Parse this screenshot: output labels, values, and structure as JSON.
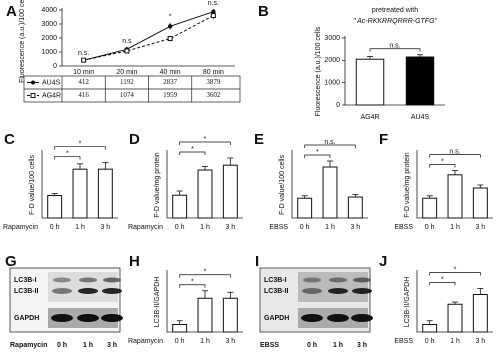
{
  "chart_data": [
    {
      "type": "line",
      "letter": "A",
      "ylabel": "Fluorescence (a.u.)/100 cells",
      "categories": [
        "10 min",
        "20 min",
        "40 min",
        "80 min"
      ],
      "series": [
        {
          "name": "AU4S",
          "color": "#111111",
          "linestyle": "solid",
          "values": [
            412,
            1192,
            2837,
            3879
          ],
          "errors": [
            60,
            150,
            250,
            200
          ]
        },
        {
          "name": "AG4R",
          "color": "#111111",
          "linestyle": "dashed",
          "values": [
            416,
            1074,
            1959,
            3602
          ],
          "errors": [
            60,
            120,
            200,
            250
          ]
        }
      ],
      "annotations": [
        "n.s.",
        "n.s",
        "*",
        "n.s."
      ],
      "ylim": [
        0,
        4000
      ],
      "yticks": [
        0,
        1000,
        2000,
        3000,
        4000
      ]
    },
    {
      "type": "bar",
      "letter": "B",
      "title": "pretreated with",
      "subtitle": "\" Ac-RKKRRQRRR-GTFG\"",
      "ylabel": "Fluorescence (a.u.)/100 cells",
      "categories": [
        "AG4R",
        "AU4S"
      ],
      "values": [
        2050,
        2150
      ],
      "errors": [
        120,
        100
      ],
      "colors": [
        "#ffffff",
        "#000000"
      ],
      "annotations": [
        "n.s."
      ],
      "ylim": [
        0,
        3000
      ],
      "yticks": [
        0,
        1000,
        2000,
        3000
      ]
    },
    {
      "type": "bar",
      "letter": "C",
      "ylabel": "F-D value/100 cells",
      "xlabel": "Rapamycin",
      "categories": [
        "0 h",
        "1 h",
        "3 h"
      ],
      "values": [
        34,
        74,
        74
      ],
      "errors": [
        3,
        8,
        10
      ],
      "colors": [
        "#ffffff",
        "#ffffff",
        "#ffffff"
      ],
      "annotations": [
        "*",
        "*"
      ],
      "ylim": [
        0,
        100
      ]
    },
    {
      "type": "bar",
      "letter": "D",
      "ylabel": "F-D value/mg protein",
      "xlabel": "Rapamycin",
      "categories": [
        "0 h",
        "1 h",
        "3 h"
      ],
      "values": [
        38,
        80,
        88
      ],
      "errors": [
        7,
        6,
        12
      ],
      "colors": [
        "#ffffff",
        "#ffffff",
        "#ffffff"
      ],
      "annotations": [
        "*",
        "*"
      ],
      "ylim": [
        0,
        110
      ]
    },
    {
      "type": "bar",
      "letter": "E",
      "ylabel": "F-D value/100 cells",
      "xlabel": "EBSS",
      "categories": [
        "0 h",
        "1 h",
        "3 h"
      ],
      "values": [
        33,
        85,
        35
      ],
      "errors": [
        4,
        10,
        4
      ],
      "colors": [
        "#ffffff",
        "#ffffff",
        "#ffffff"
      ],
      "annotations": [
        "*",
        "n.s."
      ],
      "ylim": [
        0,
        110
      ]
    },
    {
      "type": "bar",
      "letter": "F",
      "ylabel": "F-D value/mg protein",
      "xlabel": "EBSS",
      "categories": [
        "0 h",
        "1 h",
        "3 h"
      ],
      "values": [
        33,
        72,
        50
      ],
      "errors": [
        4,
        7,
        5
      ],
      "colors": [
        "#ffffff",
        "#ffffff",
        "#ffffff"
      ],
      "annotations": [
        "*",
        "n.s."
      ],
      "ylim": [
        0,
        110
      ]
    },
    {
      "type": "bar",
      "letter": "H",
      "ylabel": "LC3B-II/GAPDH",
      "xlabel": "Rapamycin",
      "categories": [
        "0 h",
        "1 h",
        "3 h"
      ],
      "values": [
        10,
        45,
        45
      ],
      "errors": [
        5,
        10,
        8
      ],
      "colors": [
        "#ffffff",
        "#ffffff",
        "#ffffff"
      ],
      "annotations": [
        "*",
        "*"
      ],
      "ylim": [
        0,
        80
      ]
    },
    {
      "type": "bar",
      "letter": "J",
      "ylabel": "LC3B-II/GAPDH",
      "xlabel": "EBSS",
      "categories": [
        "0 h",
        "1 h",
        "3 h"
      ],
      "values": [
        10,
        37,
        50
      ],
      "errors": [
        5,
        3,
        8
      ],
      "colors": [
        "#ffffff",
        "#ffffff",
        "#ffffff"
      ],
      "annotations": [
        "*",
        "*"
      ],
      "ylim": [
        0,
        80
      ]
    }
  ],
  "blots": [
    {
      "letter": "G",
      "bands": [
        "LC3B-I",
        "LC3B-II",
        "GAPDH"
      ],
      "xlabel": "Rapamycin",
      "lanes": [
        "0 h",
        "1 h",
        "3 h"
      ]
    },
    {
      "letter": "I",
      "bands": [
        "LC3B-I",
        "LC3B-II",
        "GAPDH"
      ],
      "xlabel": "EBSS",
      "lanes": [
        "0 h",
        "1 h",
        "3 h"
      ]
    }
  ]
}
